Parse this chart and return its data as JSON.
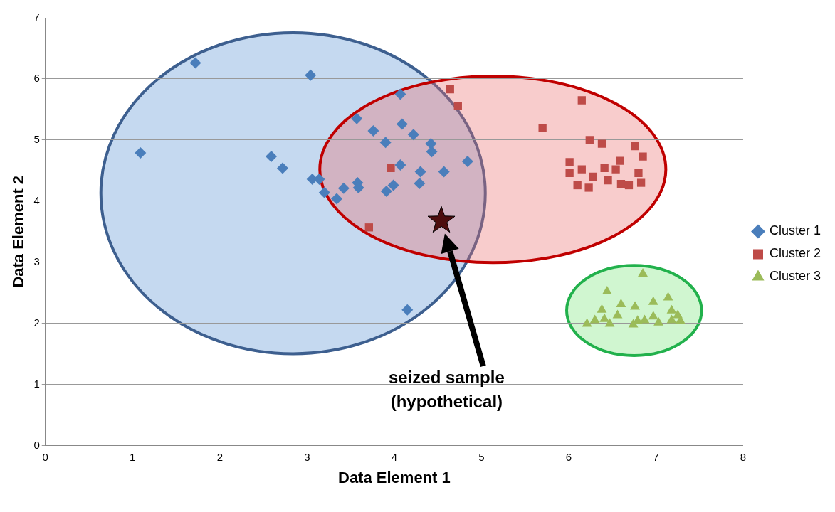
{
  "chart_data": {
    "type": "scatter",
    "xlabel": "Data Element 1",
    "ylabel": "Data Element 2",
    "xlim": [
      0,
      8
    ],
    "xticks": [
      0,
      1,
      2,
      3,
      4,
      5,
      6,
      7,
      8
    ],
    "ylim": [
      0,
      7
    ],
    "yticks": [
      0,
      1,
      2,
      3,
      4,
      5,
      6,
      7
    ],
    "grid": "y",
    "legend": "right",
    "series": [
      {
        "name": "Cluster 1",
        "color": "#4a7ebb",
        "marker": "diamond",
        "x": [
          1.09,
          1.72,
          3.04,
          2.59,
          2.72,
          3.06,
          3.14,
          3.2,
          3.34,
          3.42,
          3.57,
          3.58,
          3.59,
          3.76,
          3.9,
          3.91,
          3.99,
          4.07,
          4.09,
          4.07,
          4.22,
          4.3,
          4.29,
          4.42,
          4.43,
          4.57,
          4.84,
          4.15
        ],
        "values": [
          4.79,
          6.26,
          6.06,
          4.73,
          4.54,
          4.36,
          4.36,
          4.14,
          4.04,
          4.21,
          5.35,
          4.3,
          4.22,
          5.15,
          4.96,
          4.16,
          4.26,
          5.75,
          5.26,
          4.59,
          5.09,
          4.48,
          4.29,
          4.94,
          4.81,
          4.48,
          4.65,
          2.22
        ]
      },
      {
        "name": "Cluster 2",
        "color": "#be4b48",
        "marker": "square",
        "x": [
          4.64,
          4.73,
          3.71,
          3.96,
          5.7,
          6.15,
          6.24,
          6.38,
          6.76,
          6.85,
          6.01,
          6.01,
          6.15,
          6.1,
          6.23,
          6.28,
          6.41,
          6.45,
          6.54,
          6.59,
          6.6,
          6.69,
          6.8,
          6.83
        ],
        "values": [
          5.83,
          5.56,
          3.57,
          4.54,
          5.2,
          5.65,
          5.0,
          4.94,
          4.9,
          4.73,
          4.64,
          4.46,
          4.52,
          4.26,
          4.22,
          4.4,
          4.54,
          4.34,
          4.52,
          4.66,
          4.28,
          4.26,
          4.46,
          4.3
        ]
      },
      {
        "name": "Cluster 3",
        "color": "#9bbb59",
        "marker": "triangle",
        "x": [
          6.85,
          6.44,
          6.97,
          7.14,
          6.6,
          6.76,
          6.38,
          6.56,
          7.18,
          7.25,
          6.21,
          6.3,
          6.41,
          6.47,
          6.79,
          6.87,
          6.97,
          7.03,
          7.18,
          7.28,
          6.74
        ],
        "values": [
          2.81,
          2.52,
          2.35,
          2.42,
          2.31,
          2.27,
          2.22,
          2.13,
          2.21,
          2.13,
          1.99,
          2.05,
          2.07,
          1.99,
          2.04,
          2.05,
          2.11,
          2.01,
          2.05,
          2.04,
          1.98
        ]
      },
      {
        "color": "#4d0d0d",
        "marker": "star",
        "x": [
          4.54
        ],
        "values": [
          3.68
        ]
      }
    ],
    "annotations": [
      "seized sample\n(hypothetical)"
    ]
  }
}
